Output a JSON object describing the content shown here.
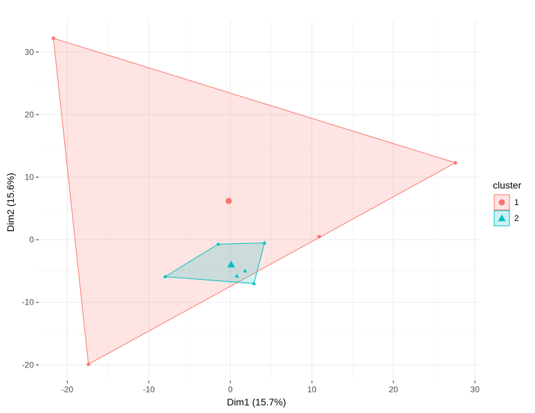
{
  "chart_data": {
    "type": "scatter",
    "title": "",
    "xlabel": "Dim1 (15.7%)",
    "ylabel": "Dim2 (15.6%)",
    "xlim": [
      -23.5,
      30.5
    ],
    "ylim": [
      -22.5,
      35
    ],
    "x_ticks": [
      -20,
      -10,
      0,
      10,
      20,
      30
    ],
    "y_ticks": [
      -20,
      -10,
      0,
      10,
      20,
      30
    ],
    "x_tick_labels": [
      "-20",
      "-10",
      "0",
      "10",
      "20",
      "30"
    ],
    "y_tick_labels": [
      "-20",
      "-10",
      "0",
      "10",
      "20",
      "30"
    ],
    "grid": true,
    "legend": {
      "title": "cluster",
      "position": "right",
      "entries": [
        {
          "label": "1",
          "shape": "circle"
        },
        {
          "label": "2",
          "shape": "triangle"
        }
      ]
    },
    "series": [
      {
        "key": "1",
        "color": "#F8766D",
        "fill": "#F8766D",
        "shape": "circle",
        "points": [
          {
            "x": -21.7,
            "y": 32.2
          },
          {
            "x": 27.6,
            "y": 12.3
          },
          {
            "x": 10.9,
            "y": 0.5
          },
          {
            "x": -17.4,
            "y": -19.9
          }
        ],
        "hull": [
          [
            -21.7,
            32.2
          ],
          [
            27.6,
            12.3
          ],
          [
            -17.4,
            -19.9
          ]
        ],
        "center": {
          "x": -0.2,
          "y": 6.2
        }
      },
      {
        "key": "2",
        "color": "#00BFC4",
        "fill": "#00BFC4",
        "shape": "triangle",
        "points": [
          {
            "x": -1.5,
            "y": -0.7
          },
          {
            "x": 4.2,
            "y": -0.5
          },
          {
            "x": -8.0,
            "y": -5.9
          },
          {
            "x": 1.8,
            "y": -5.0
          },
          {
            "x": 0.8,
            "y": -5.8
          },
          {
            "x": 2.9,
            "y": -7.0
          }
        ],
        "hull": [
          [
            -1.5,
            -0.7
          ],
          [
            4.2,
            -0.5
          ],
          [
            2.9,
            -7.0
          ],
          [
            -8.0,
            -5.9
          ]
        ],
        "center": {
          "x": 0.1,
          "y": -4.0
        }
      }
    ]
  }
}
